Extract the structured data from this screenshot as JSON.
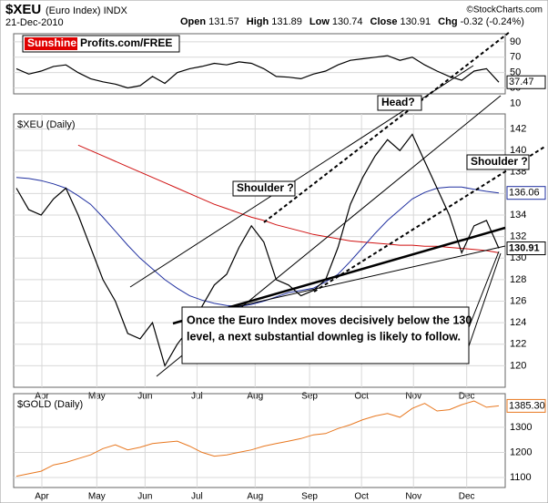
{
  "header": {
    "symbol": "$XEU",
    "name": "(Euro Index) INDX",
    "date": "21-Dec-2010",
    "credit": "©StockCharts.com",
    "quote": [
      {
        "label": "Open",
        "value": "131.57"
      },
      {
        "label": "High",
        "value": "131.89"
      },
      {
        "label": "Low",
        "value": "130.74"
      },
      {
        "label": "Close",
        "value": "130.91"
      },
      {
        "label": "Chg",
        "value": "-0.32 (-0.24%)"
      }
    ]
  },
  "chart_data": [
    {
      "type": "line",
      "logo": [
        "Sunshine",
        "Profits.com/FREE"
      ],
      "xlim": [
        0,
        39
      ],
      "ylim": [
        22.3,
        100.6
      ],
      "yticks": [
        90,
        70,
        50,
        30,
        10
      ],
      "grid": true,
      "series": [
        {
          "color": "#000000",
          "last_label": "37.47",
          "values": [
            55,
            48,
            52,
            58,
            60,
            50,
            42,
            38,
            35,
            30,
            33,
            45,
            36,
            50,
            55,
            58,
            62,
            60,
            64,
            62,
            55,
            45,
            44,
            42,
            48,
            52,
            60,
            66,
            68,
            70,
            72,
            66,
            70,
            60,
            52,
            45,
            40,
            52,
            55,
            37.47
          ]
        }
      ]
    },
    {
      "type": "line",
      "title": "$XEU (Daily)",
      "xlim": [
        0,
        39
      ],
      "ylim": [
        118,
        143.4
      ],
      "yticks": [
        120,
        122,
        124,
        126,
        128,
        130,
        132,
        134,
        136,
        138,
        140,
        142
      ],
      "grid": true,
      "xticks": [
        {
          "value": 2.06,
          "label": "Apr"
        },
        {
          "value": 6.5,
          "label": "May"
        },
        {
          "value": 10.4,
          "label": "Jun"
        },
        {
          "value": 14.6,
          "label": "Jul"
        },
        {
          "value": 19.3,
          "label": "Aug"
        },
        {
          "value": 23.7,
          "label": "Sep"
        },
        {
          "value": 27.9,
          "label": "Oct"
        },
        {
          "value": 32.1,
          "label": "Nov"
        },
        {
          "value": 36.4,
          "label": "Dec"
        }
      ],
      "series": [
        {
          "color": "#d01010",
          "values": [
            null,
            null,
            null,
            null,
            null,
            140.5,
            140,
            139.5,
            139,
            138.5,
            138,
            137.5,
            137,
            136.5,
            136,
            135.5,
            135,
            134.6,
            134.2,
            133.8,
            133.5,
            133.1,
            132.8,
            132.5,
            132.2,
            132,
            131.8,
            131.6,
            131.5,
            131.4,
            131.3,
            131.2,
            131.2,
            131.1,
            131.1,
            131,
            130.9,
            130.8,
            130.7,
            130.5
          ]
        },
        {
          "color": "#2030a0",
          "last_label": "136.06",
          "values": [
            137.5,
            137.4,
            137.2,
            136.9,
            136.5,
            135.8,
            135,
            133.8,
            132.5,
            131.2,
            130,
            129,
            128,
            127.2,
            126.5,
            126.1,
            125.8,
            125.6,
            125.5,
            125.7,
            126,
            126.4,
            126.8,
            127,
            127.2,
            127.8,
            128.5,
            129.7,
            131,
            132.3,
            133.5,
            134.5,
            135.5,
            136.1,
            136.5,
            136.6,
            136.6,
            136.4,
            136.2,
            136.06
          ]
        },
        {
          "color": "#000000",
          "last_label": "130.91",
          "values": [
            136.5,
            134.5,
            134,
            135.5,
            136.5,
            134,
            131,
            128,
            126,
            123,
            122.5,
            124,
            120,
            122,
            123.5,
            125.5,
            127.5,
            128.5,
            131,
            133,
            131.5,
            128,
            127.5,
            126.5,
            127,
            128,
            131,
            135,
            137.5,
            139.5,
            141,
            140,
            141.5,
            139,
            136.5,
            134,
            130.5,
            133,
            133.5,
            130.91
          ]
        }
      ],
      "annotations": [
        {
          "text": "Head?"
        },
        {
          "text": "Shoulder ?"
        },
        {
          "text": "Shoulder ?"
        }
      ],
      "note": [
        "Once the Euro Index moves decisively below the 130",
        "level, a next substantial downleg is likely to follow."
      ]
    },
    {
      "type": "line",
      "title": "$GOLD (Daily)",
      "xlim": [
        0,
        39
      ],
      "ylim": [
        1060,
        1434
      ],
      "yticks": [
        1100,
        1200,
        1300
      ],
      "grid": true,
      "xticks": [
        {
          "value": 2.06,
          "label": "Apr"
        },
        {
          "value": 6.5,
          "label": "May"
        },
        {
          "value": 10.4,
          "label": "Jun"
        },
        {
          "value": 14.6,
          "label": "Jul"
        },
        {
          "value": 19.3,
          "label": "Aug"
        },
        {
          "value": 23.7,
          "label": "Sep"
        },
        {
          "value": 27.9,
          "label": "Oct"
        },
        {
          "value": 32.1,
          "label": "Nov"
        },
        {
          "value": 36.4,
          "label": "Dec"
        }
      ],
      "series": [
        {
          "color": "#e87820",
          "last_label": "1385.30",
          "values": [
            1105,
            1115,
            1125,
            1150,
            1160,
            1175,
            1190,
            1215,
            1230,
            1210,
            1220,
            1235,
            1240,
            1245,
            1225,
            1200,
            1185,
            1190,
            1200,
            1210,
            1225,
            1235,
            1245,
            1255,
            1270,
            1275,
            1295,
            1310,
            1330,
            1345,
            1355,
            1340,
            1375,
            1395,
            1365,
            1370,
            1390,
            1405,
            1380,
            1385.3
          ]
        }
      ]
    }
  ]
}
